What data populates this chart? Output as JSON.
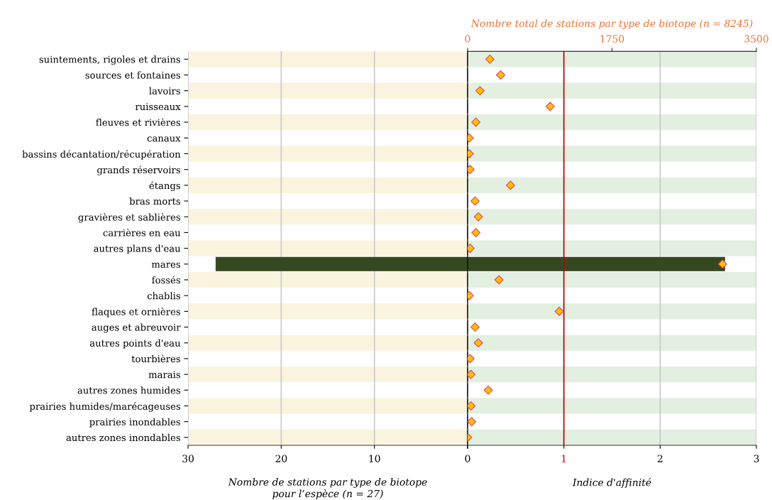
{
  "chart_data": [
    {
      "type": "bar",
      "orientation": "horizontal",
      "xlabel": "Nombre de stations par type de biotope pour l’espèce (n = 27)",
      "categories": [
        "suintements, rigoles et drains",
        "sources et fontaines",
        "lavoirs",
        "ruisseaux",
        "fleuves et rivières",
        "canaux",
        "bassins décantation/récupération",
        "grands réservoirs",
        "étangs",
        "bras morts",
        "gravières et sablières",
        "carrières en eau",
        "autres plans d'eau",
        "mares",
        "fossés",
        "chablis",
        "flaques et ornières",
        "auges et abreuvoir",
        "autres points d'eau",
        "tourbières",
        "marais",
        "autres zones humides",
        "prairies humides/marécageuses",
        "prairies inondables",
        "autres zones inondables"
      ],
      "values": [
        0,
        0,
        0,
        0,
        0,
        0,
        0,
        0,
        0,
        0,
        0,
        0,
        0,
        27,
        0,
        0,
        0,
        0,
        0,
        0,
        0,
        0,
        0,
        0,
        0
      ],
      "color": "#34491f",
      "xlim": [
        30,
        0
      ],
      "xticks": [
        30,
        20,
        10,
        {
          "value": 0,
          "label": null
        }
      ],
      "grid": "x",
      "bands": [
        {
          "axis": "y",
          "from": "suintements, rigoles et drains",
          "to": "suintements, rigoles et drains",
          "color": "#faf4de"
        },
        {
          "axis": "y",
          "from": "lavoirs",
          "to": "lavoirs",
          "color": "#faf4de"
        },
        {
          "axis": "y",
          "from": "fleuves et rivières",
          "to": "fleuves et rivières",
          "color": "#faf4de"
        },
        {
          "axis": "y",
          "from": "bassins décantation/récupération",
          "to": "bassins décantation/récupération",
          "color": "#faf4de"
        },
        {
          "axis": "y",
          "from": "étangs",
          "to": "étangs",
          "color": "#faf4de"
        },
        {
          "axis": "y",
          "from": "gravières et sablières",
          "to": "gravières et sablières",
          "color": "#faf4de"
        },
        {
          "axis": "y",
          "from": "autres plans d'eau",
          "to": "autres plans d'eau",
          "color": "#faf4de"
        },
        {
          "axis": "y",
          "from": "fossés",
          "to": "fossés",
          "color": "#faf4de"
        },
        {
          "axis": "y",
          "from": "flaques et ornières",
          "to": "flaques et ornières",
          "color": "#faf4de"
        },
        {
          "axis": "y",
          "from": "autres points d'eau",
          "to": "autres points d'eau",
          "color": "#faf4de"
        },
        {
          "axis": "y",
          "from": "marais",
          "to": "marais",
          "color": "#faf4de"
        },
        {
          "axis": "y",
          "from": "prairies humides/marécageuses",
          "to": "prairies humides/marécageuses",
          "color": "#faf4de"
        },
        {
          "axis": "y",
          "from": "autres zones inondables",
          "to": "autres zones inondables",
          "color": "#faf4de"
        }
      ]
    },
    {
      "type": "bar",
      "orientation": "horizontal",
      "xlabel": "Indice d'affinité",
      "x2label": "Nombre total de stations par type de biotope (n = 8245)",
      "tick_labels": "x",
      "categories": [
        "suintements, rigoles et drains",
        "sources et fontaines",
        "lavoirs",
        "ruisseaux",
        "fleuves et rivières",
        "canaux",
        "bassins décantation/récupération",
        "grands réservoirs",
        "étangs",
        "bras morts",
        "gravières et sablières",
        "carrières en eau",
        "autres plans d'eau",
        "mares",
        "fossés",
        "chablis",
        "flaques et ornières",
        "auges et abreuvoir",
        "autres points d'eau",
        "tourbières",
        "marais",
        "autres zones humides",
        "prairies humides/marécageuses",
        "prairies inondables",
        "autres zones inondables"
      ],
      "series": [
        {
          "type": "bar",
          "color": "#34491f",
          "values": [
            0,
            0,
            0,
            0,
            0,
            0,
            0,
            0,
            0,
            0,
            0,
            0,
            0,
            2.67,
            0,
            0,
            0,
            0,
            0,
            0,
            0,
            0,
            0,
            0,
            0
          ]
        },
        {
          "type": "scatter",
          "axis": "x2",
          "color": "#ffc000",
          "marker": "diamond",
          "values": [
            270,
            400,
            150,
            1000,
            100,
            20,
            20,
            30,
            520,
            90,
            130,
            100,
            30,
            3090,
            380,
            20,
            1110,
            90,
            130,
            30,
            40,
            250,
            40,
            50,
            0
          ]
        }
      ],
      "xlim": [
        0,
        3
      ],
      "xticks": [
        0,
        1,
        2,
        3
      ],
      "x2lim": [
        0,
        3500
      ],
      "x2ticks": [
        0,
        1750,
        3500
      ],
      "grid": "x",
      "ref_lines": [
        {
          "axis": "x",
          "value": 1,
          "color": "#cc0000"
        }
      ],
      "bands": [
        {
          "axis": "y",
          "from": "suintements, rigoles et drains",
          "to": "suintements, rigoles et drains",
          "color": "#e2efe1"
        },
        {
          "axis": "y",
          "from": "lavoirs",
          "to": "lavoirs",
          "color": "#e2efe1"
        },
        {
          "axis": "y",
          "from": "fleuves et rivières",
          "to": "fleuves et rivières",
          "color": "#e2efe1"
        },
        {
          "axis": "y",
          "from": "bassins décantation/récupération",
          "to": "bassins décantation/récupération",
          "color": "#e2efe1"
        },
        {
          "axis": "y",
          "from": "étangs",
          "to": "étangs",
          "color": "#e2efe1"
        },
        {
          "axis": "y",
          "from": "gravières et sablières",
          "to": "gravières et sablières",
          "color": "#e2efe1"
        },
        {
          "axis": "y",
          "from": "autres plans d'eau",
          "to": "autres plans d'eau",
          "color": "#e2efe1"
        },
        {
          "axis": "y",
          "from": "fossés",
          "to": "fossés",
          "color": "#e2efe1"
        },
        {
          "axis": "y",
          "from": "flaques et ornières",
          "to": "flaques et ornières",
          "color": "#e2efe1"
        },
        {
          "axis": "y",
          "from": "autres points d'eau",
          "to": "autres points d'eau",
          "color": "#e2efe1"
        },
        {
          "axis": "y",
          "from": "marais",
          "to": "marais",
          "color": "#e2efe1"
        },
        {
          "axis": "y",
          "from": "prairies humides/marécageuses",
          "to": "prairies humides/marécageuses",
          "color": "#e2efe1"
        },
        {
          "axis": "y",
          "from": "autres zones inondables",
          "to": "autres zones inondables",
          "color": "#e2efe1"
        }
      ]
    }
  ]
}
